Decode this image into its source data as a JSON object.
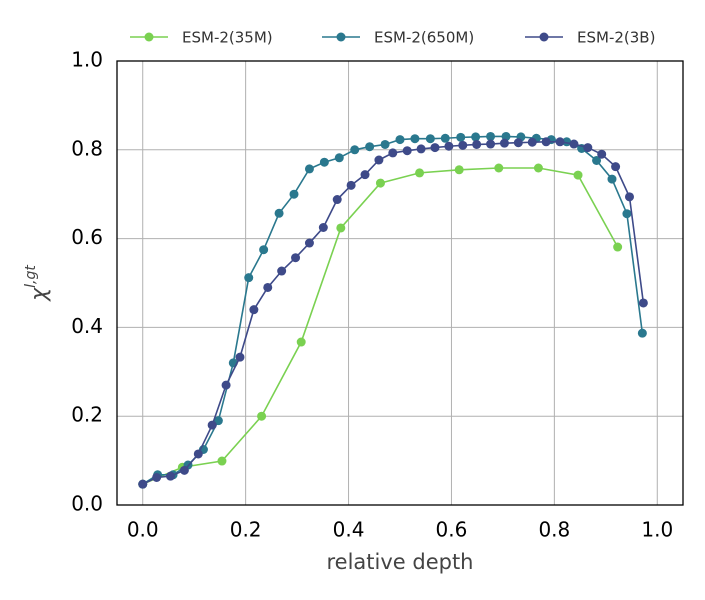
{
  "chart_data": {
    "type": "line",
    "xlabel": "relative depth",
    "ylabel": "χ",
    "ylabel_sup": "l,gt",
    "xlim": [
      -0.05,
      1.05
    ],
    "ylim": [
      0,
      1
    ],
    "xticks": [
      {
        "value": 0,
        "label": "0.0"
      },
      {
        "value": 0.2,
        "label": "0.2"
      },
      {
        "value": 0.4,
        "label": "0.4"
      },
      {
        "value": 0.6,
        "label": "0.6"
      },
      {
        "value": 0.8,
        "label": "0.8"
      },
      {
        "value": 1,
        "label": "1.0"
      }
    ],
    "yticks": [
      {
        "value": 0,
        "label": "0.0"
      },
      {
        "value": 0.2,
        "label": "0.2"
      },
      {
        "value": 0.4,
        "label": "0.4"
      },
      {
        "value": 0.6,
        "label": "0.6"
      },
      {
        "value": 0.8,
        "label": "0.8"
      },
      {
        "value": 1,
        "label": "1.0"
      }
    ],
    "grid": true,
    "legend": "top",
    "series": [
      {
        "name": "ESM-2(35M)",
        "color": "#7ad151",
        "x": [
          0,
          0.077,
          0.154,
          0.231,
          0.308,
          0.385,
          0.462,
          0.538,
          0.615,
          0.692,
          0.769,
          0.846,
          0.923
        ],
        "values": [
          0.047,
          0.085,
          0.099,
          0.2,
          0.367,
          0.624,
          0.725,
          0.748,
          0.755,
          0.759,
          0.759,
          0.743,
          0.581
        ]
      },
      {
        "name": "ESM-2(650M)",
        "color": "#2a788e",
        "x": [
          0,
          0.029,
          0.059,
          0.088,
          0.118,
          0.147,
          0.176,
          0.206,
          0.235,
          0.265,
          0.294,
          0.324,
          0.353,
          0.382,
          0.412,
          0.441,
          0.471,
          0.5,
          0.529,
          0.559,
          0.588,
          0.618,
          0.647,
          0.676,
          0.706,
          0.735,
          0.765,
          0.794,
          0.824,
          0.853,
          0.882,
          0.912,
          0.941,
          0.971
        ],
        "values": [
          0.047,
          0.068,
          0.068,
          0.09,
          0.125,
          0.19,
          0.32,
          0.512,
          0.575,
          0.657,
          0.7,
          0.757,
          0.772,
          0.782,
          0.8,
          0.807,
          0.812,
          0.823,
          0.825,
          0.825,
          0.826,
          0.828,
          0.829,
          0.83,
          0.83,
          0.829,
          0.826,
          0.823,
          0.818,
          0.803,
          0.776,
          0.734,
          0.656,
          0.387
        ]
      },
      {
        "name": "ESM-2(3B)",
        "color": "#3e4a89",
        "x": [
          0,
          0.027,
          0.054,
          0.081,
          0.108,
          0.135,
          0.162,
          0.189,
          0.216,
          0.243,
          0.27,
          0.297,
          0.324,
          0.351,
          0.378,
          0.405,
          0.432,
          0.459,
          0.486,
          0.514,
          0.541,
          0.568,
          0.595,
          0.622,
          0.649,
          0.676,
          0.703,
          0.73,
          0.757,
          0.784,
          0.811,
          0.838,
          0.865,
          0.892,
          0.919,
          0.946,
          0.973
        ],
        "values": [
          0.047,
          0.062,
          0.065,
          0.078,
          0.115,
          0.18,
          0.27,
          0.333,
          0.44,
          0.49,
          0.527,
          0.557,
          0.59,
          0.625,
          0.688,
          0.72,
          0.744,
          0.777,
          0.793,
          0.798,
          0.802,
          0.805,
          0.808,
          0.81,
          0.812,
          0.813,
          0.815,
          0.816,
          0.817,
          0.818,
          0.818,
          0.813,
          0.805,
          0.79,
          0.762,
          0.694,
          0.455
        ]
      }
    ]
  }
}
